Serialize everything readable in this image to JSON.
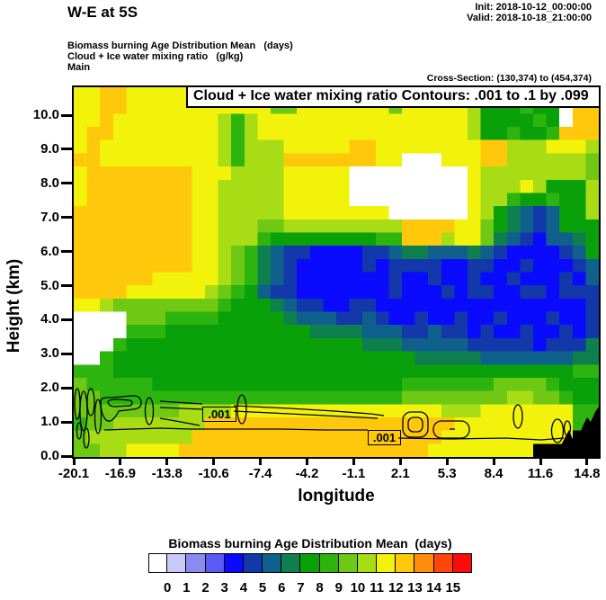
{
  "header": {
    "title": "W-E at 5S",
    "init": "Init: 2018-10-12_00:00:00",
    "valid": "Valid: 2018-10-18_21:00:00",
    "var_line1": "Biomass burning Age Distribution Mean   (days)",
    "var_line2": "Cloud + Ice water mixing ratio   (g/kg)",
    "var_line3": "Main",
    "cross_section": "Cross-Section: (130,374) to (454,374)"
  },
  "plot": {
    "overlay_title": "Cloud + Ice water mixing ratio Contours: .001 to .1 by .099",
    "contour_labels": [
      ".001",
      ".001"
    ],
    "y_axis": {
      "label": "Height (km)",
      "ticks": [
        "10.0",
        "9.0",
        "8.0",
        "7.0",
        "6.0",
        "5.0",
        "4.0",
        "3.0",
        "2.0",
        "1.0",
        "0.0"
      ]
    },
    "x_axis": {
      "label": "longitude",
      "ticks": [
        "-20.1",
        "-16.9",
        "-13.8",
        "-10.6",
        "-7.4",
        "-4.2",
        "-1.1",
        "2.1",
        "5.3",
        "8.4",
        "11.6",
        "14.8"
      ]
    }
  },
  "colorbar": {
    "title": "Biomass burning Age Distribution Mean  (days)",
    "tick_labels": [
      "0",
      "1",
      "2",
      "3",
      "4",
      "5",
      "6",
      "7",
      "8",
      "9",
      "10",
      "11",
      "12",
      "13",
      "14",
      "15"
    ],
    "colors": [
      "#FFFFFF",
      "#C8C8FA",
      "#8A8AF0",
      "#5A5AF5",
      "#0A0AFF",
      "#1238AA",
      "#10608E",
      "#0E8050",
      "#0AA00A",
      "#2EB40F",
      "#6EC814",
      "#A8DC14",
      "#F2F20A",
      "#FFC80A",
      "#FF8C0A",
      "#FF460A",
      "#FF0A0A"
    ]
  },
  "chart_data": {
    "type": "heatmap",
    "title": "W-E at 5S",
    "fill_variable": "Biomass burning Age Distribution Mean (days)",
    "contour_variable": "Cloud + Ice water mixing ratio (g/kg)",
    "contour_levels": ".001 to .1 by .099",
    "xlabel": "longitude",
    "ylabel": "Height (km)",
    "x_range": [
      -20.1,
      15.0
    ],
    "y_range": [
      0,
      10.8
    ],
    "x_ticks": [
      -20.1,
      -16.9,
      -13.8,
      -10.6,
      -7.4,
      -4.2,
      -1.1,
      2.1,
      5.3,
      8.4,
      11.6,
      14.8
    ],
    "y_ticks": [
      0,
      1,
      2,
      3,
      4,
      5,
      6,
      7,
      8,
      9,
      10
    ],
    "colorbar_values": [
      0,
      1,
      2,
      3,
      4,
      5,
      6,
      7,
      8,
      9,
      10,
      11,
      12,
      13,
      14,
      15
    ],
    "palette": {
      "w": "#FFFFFF",
      "4": "#0A0AFF",
      "5": "#1238AA",
      "6": "#10608E",
      "7": "#0E8050",
      "8": "#0AA00A",
      "9": "#2EB40F",
      "a": "#6EC814",
      "b": "#A8DC14",
      "c": "#F2F20A",
      "d": "#FFC80A",
      "e": "#FF8C0A",
      "k": "#000000"
    },
    "palette_value_days": {
      "w": "0",
      "4": "4-5",
      "5": "5-6",
      "6": "6-7",
      "7": "7-8",
      "8": "8-9",
      "9": "9-10",
      "a": "10-11",
      "b": "11-12",
      "c": "12-13",
      "d": "13-14",
      "e": "14-15",
      "k": "terrain"
    },
    "grid_note": "40 cols (lon -20.1..15.0, left to right) x 28 rows (10.8km top .. 0km bottom); each char is one cell of the age field",
    "grid_rows": [
      "ccddcccccccccccccccccccccccccccccccccccc",
      "ccddcccccccccccaacccccccacccccb888988wdd",
      "ccdccccccccb9bccccccccccccccccb888898wdd",
      "cddccccccccb9bccccccccccccccccb889889ddd",
      "cdcccccccccb9bbbcccccddccccccccddbbbcccb",
      "ddcccccccccb9bbbdddddddccwwwcccddbbbbbba",
      "cddddddddcccbbbbcccccwwwwwwwwwcbbbbbbbba",
      "cddddddddccbbbbbcccccwwwwwwwwwcbbbcb888b",
      "cddddddddccbbbbbcccccwwwwwwwwwcbb988988b",
      "dddddddddccbbbbbccccccccwwwwwwcb8765688b",
      "dddddddddccbbbaabbbbbbbbbddddcca87656888",
      "dddddddddccbbb98888888899dddbcca76546678",
      "dddddddddccba976554444556776667654444568",
      "dddddddddccba976544444545555445544544456",
      "ddddddcccccba976544444445445445445444546",
      "ddddccccccba986554444444544454554455 4555",
      "ccbaaaaaaaa9888765544554444444444444 4445",
      "wwwwaaa99998888876665565445445445444 5445",
      "wwww999888888888887777666556554544544545",
      "www98888888888888888887776666655555455 57",
      "ww988888888888888888888888777776666666778",
      "99988888888888888888888888888888888888 99",
      "a9999988888888888888888889999999aaaa9888",
      "aa9999999999999999999999 9aaaaaaaabbaa988",
      "aaaaaaaabbbbccccccccccccccccbbbccccccc99",
      "9aabbbbbbbdddddddddddddddddddccccccccc99",
      "abbbbbbbbddddddddddddddddddd cccccccccckk",
      "aabbccccdddddddddddddddddddccccccc ckkkk"
    ]
  }
}
